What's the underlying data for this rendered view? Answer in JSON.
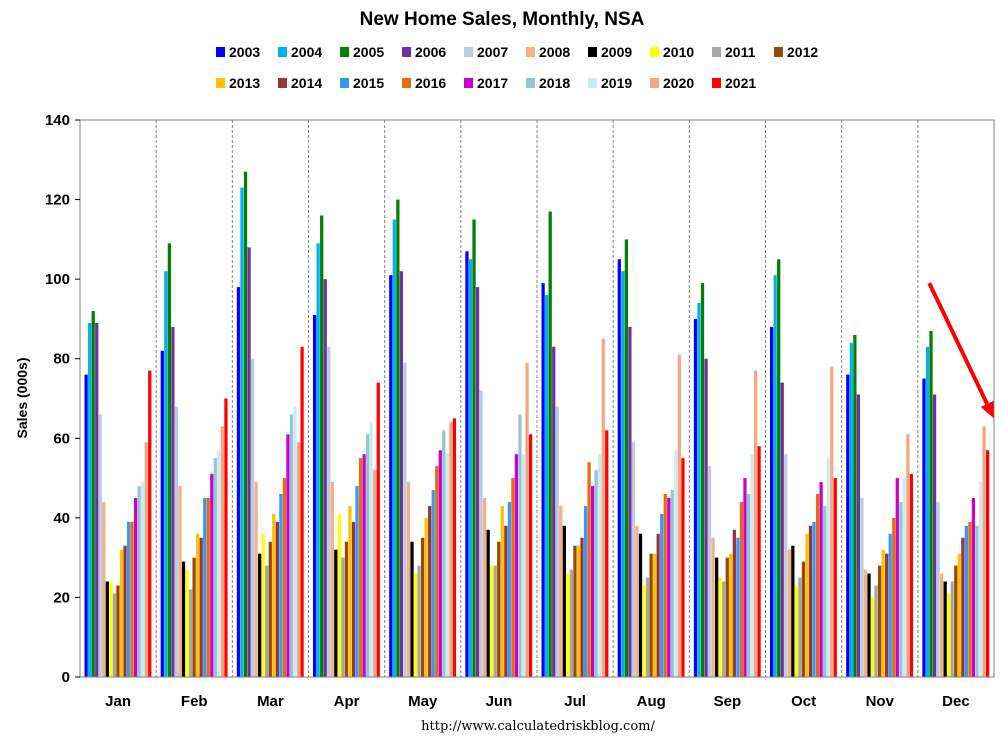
{
  "chart_data": {
    "type": "bar",
    "title": "New Home Sales, Monthly, NSA",
    "ylabel": "Sales (000s)",
    "xlabel": "",
    "source": "http://www.calculatedriskblog.com/",
    "ylim": [
      0,
      140
    ],
    "yticks": [
      0,
      20,
      40,
      60,
      80,
      100,
      120,
      140
    ],
    "grid": "vertical dashed",
    "legend_position": "top",
    "categories": [
      "Jan",
      "Feb",
      "Mar",
      "Apr",
      "May",
      "Jun",
      "Jul",
      "Aug",
      "Sep",
      "Oct",
      "Nov",
      "Dec"
    ],
    "series": [
      {
        "name": "2003",
        "color": "#0000ff",
        "values": [
          76,
          82,
          98,
          91,
          101,
          107,
          99,
          105,
          90,
          88,
          76,
          75
        ]
      },
      {
        "name": "2004",
        "color": "#00b0f0",
        "values": [
          89,
          102,
          123,
          109,
          115,
          105,
          96,
          102,
          94,
          101,
          84,
          83
        ]
      },
      {
        "name": "2005",
        "color": "#008000",
        "values": [
          92,
          109,
          127,
          116,
          120,
          115,
          117,
          110,
          99,
          105,
          86,
          87
        ]
      },
      {
        "name": "2006",
        "color": "#7030a0",
        "values": [
          89,
          88,
          108,
          100,
          102,
          98,
          83,
          88,
          80,
          74,
          71,
          71
        ]
      },
      {
        "name": "2007",
        "color": "#b8cce4",
        "values": [
          66,
          68,
          80,
          83,
          79,
          72,
          68,
          59,
          53,
          56,
          45,
          44
        ]
      },
      {
        "name": "2008",
        "color": "#f4b183",
        "values": [
          44,
          48,
          49,
          49,
          49,
          45,
          43,
          38,
          35,
          32,
          27,
          26
        ]
      },
      {
        "name": "2009",
        "color": "#000000",
        "values": [
          24,
          29,
          31,
          32,
          34,
          37,
          38,
          36,
          30,
          33,
          26,
          24
        ]
      },
      {
        "name": "2010",
        "color": "#ffff00",
        "values": [
          24,
          27,
          36,
          41,
          26,
          28,
          26,
          23,
          25,
          23,
          20,
          21
        ]
      },
      {
        "name": "2011",
        "color": "#a6a6a6",
        "values": [
          21,
          22,
          28,
          30,
          28,
          28,
          27,
          25,
          24,
          25,
          23,
          24
        ]
      },
      {
        "name": "2012",
        "color": "#984807",
        "values": [
          23,
          30,
          34,
          34,
          35,
          34,
          33,
          31,
          30,
          29,
          28,
          28
        ]
      },
      {
        "name": "2013",
        "color": "#ffc000",
        "values": [
          32,
          36,
          41,
          43,
          40,
          43,
          33,
          31,
          31,
          36,
          32,
          31
        ]
      },
      {
        "name": "2014",
        "color": "#953735",
        "values": [
          33,
          35,
          39,
          39,
          43,
          38,
          35,
          36,
          37,
          38,
          31,
          35
        ]
      },
      {
        "name": "2015",
        "color": "#3399ff",
        "values": [
          39,
          45,
          46,
          48,
          47,
          44,
          43,
          41,
          35,
          39,
          36,
          38
        ]
      },
      {
        "name": "2016",
        "color": "#e46c0a",
        "values": [
          39,
          45,
          50,
          55,
          53,
          50,
          54,
          46,
          44,
          46,
          40,
          39
        ]
      },
      {
        "name": "2017",
        "color": "#cc00cc",
        "values": [
          45,
          51,
          61,
          56,
          57,
          56,
          48,
          45,
          50,
          49,
          50,
          45
        ]
      },
      {
        "name": "2018",
        "color": "#93c6d4",
        "values": [
          48,
          55,
          66,
          61,
          62,
          66,
          52,
          47,
          46,
          43,
          44,
          38
        ]
      },
      {
        "name": "2019",
        "color": "#cfe9f0",
        "values": [
          49,
          57,
          68,
          64,
          56,
          56,
          56,
          57,
          56,
          55,
          50,
          49
        ]
      },
      {
        "name": "2020",
        "color": "#f4a582",
        "values": [
          59,
          63,
          59,
          52,
          64,
          79,
          85,
          81,
          77,
          78,
          61,
          63
        ]
      },
      {
        "name": "2021",
        "color": "#ff0000",
        "values": [
          77,
          70,
          83,
          74,
          65,
          61,
          62,
          55,
          58,
          50,
          51,
          57
        ]
      }
    ],
    "annotations": [
      {
        "type": "arrow",
        "color": "#ff0000",
        "from": {
          "month": "Dec",
          "offset": -0.35,
          "y": 99
        },
        "to": {
          "month": "Dec",
          "offset": 0.5,
          "y": 65
        }
      }
    ]
  }
}
